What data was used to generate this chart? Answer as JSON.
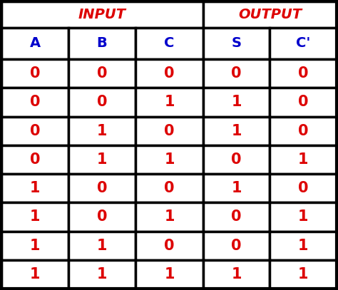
{
  "title_input": "INPUT",
  "title_output": "OUTPUT",
  "col_headers": [
    "A",
    "B",
    "C",
    "S",
    "C'"
  ],
  "header_color": "#0000cc",
  "title_color": "#dd0000",
  "data_color": "#dd0000",
  "rows": [
    [
      0,
      0,
      0,
      0,
      0
    ],
    [
      0,
      0,
      1,
      1,
      0
    ],
    [
      0,
      1,
      0,
      1,
      0
    ],
    [
      0,
      1,
      1,
      0,
      1
    ],
    [
      1,
      0,
      0,
      1,
      0
    ],
    [
      1,
      0,
      1,
      0,
      1
    ],
    [
      1,
      1,
      0,
      0,
      1
    ],
    [
      1,
      1,
      1,
      1,
      1
    ]
  ],
  "bg_color": "white",
  "border_color": "black",
  "title_fontsize": 14,
  "header_fontsize": 14,
  "data_fontsize": 15,
  "border_lw": 2.5,
  "fig_width": 4.74,
  "fig_height": 4.07,
  "dpi": 100
}
